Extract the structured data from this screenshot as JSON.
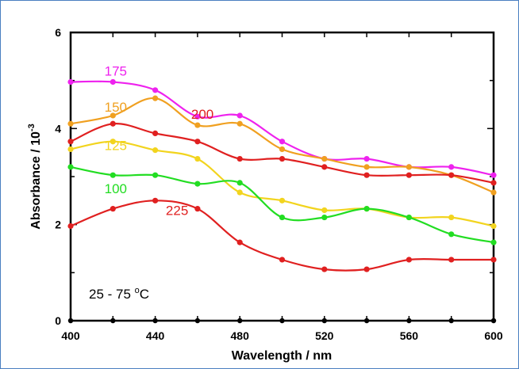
{
  "chart_data": {
    "type": "line",
    "xlabel": "Wavelength / nm",
    "ylabel": "Absorbance / 10",
    "ylabel_exponent": "-3",
    "xlim": [
      400,
      600
    ],
    "ylim": [
      0,
      6
    ],
    "x_ticks": [
      400,
      440,
      480,
      520,
      560,
      600
    ],
    "y_ticks": [
      0,
      2,
      4,
      6
    ],
    "grid": false,
    "annotation": "25 - 75 ",
    "annotation_super": "o",
    "annotation_unit": "C",
    "x": [
      400,
      420,
      440,
      460,
      480,
      500,
      520,
      540,
      560,
      580,
      600
    ],
    "series": [
      {
        "name": "175",
        "color": "#ee22ee",
        "values": [
          4.97,
          4.97,
          4.8,
          4.25,
          4.27,
          3.73,
          3.37,
          3.37,
          3.2,
          3.2,
          3.03
        ]
      },
      {
        "name": "150",
        "color": "#f0a020",
        "values": [
          4.1,
          4.27,
          4.63,
          4.07,
          4.1,
          3.57,
          3.37,
          3.2,
          3.2,
          3.03,
          2.67
        ]
      },
      {
        "name": "200",
        "color": "#e02020",
        "values": [
          3.73,
          4.1,
          3.9,
          3.73,
          3.37,
          3.37,
          3.2,
          3.03,
          3.03,
          3.03,
          2.87
        ]
      },
      {
        "name": "125",
        "color": "#f2d41e",
        "values": [
          3.57,
          3.73,
          3.55,
          3.37,
          2.67,
          2.5,
          2.3,
          2.33,
          2.15,
          2.15,
          1.97
        ]
      },
      {
        "name": "100",
        "color": "#22dd22",
        "values": [
          3.2,
          3.03,
          3.03,
          2.85,
          2.87,
          2.15,
          2.15,
          2.33,
          2.15,
          1.8,
          1.63
        ]
      },
      {
        "name": "225",
        "color": "#e02020",
        "values": [
          1.97,
          2.33,
          2.5,
          2.33,
          1.63,
          1.27,
          1.07,
          1.07,
          1.27,
          1.27,
          1.27
        ]
      }
    ],
    "series_labels": [
      {
        "name": "175",
        "color": "#ee22ee",
        "x": 416,
        "y": 5.1
      },
      {
        "name": "150",
        "color": "#f0a020",
        "x": 416,
        "y": 4.35
      },
      {
        "name": "200",
        "color": "#e02020",
        "x": 457,
        "y": 4.2
      },
      {
        "name": "125",
        "color": "#f2d41e",
        "x": 416,
        "y": 3.55
      },
      {
        "name": "100",
        "color": "#22dd22",
        "x": 416,
        "y": 2.65
      },
      {
        "name": "225",
        "color": "#e02020",
        "x": 445,
        "y": 2.2
      }
    ]
  }
}
